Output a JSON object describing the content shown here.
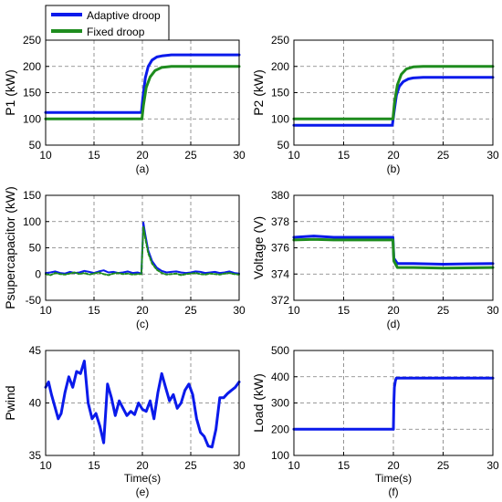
{
  "legend": {
    "entries": [
      {
        "label": "Adaptive droop",
        "color": "#0a1aeb"
      },
      {
        "label": "Fixed droop",
        "color": "#1e8c1e"
      }
    ]
  },
  "colors": {
    "adaptive": "#0a1aeb",
    "fixed": "#1e8c1e"
  },
  "chart_data": [
    {
      "type": "line",
      "panel": "(a)",
      "ylabel": "P1 (kW)",
      "xlabel": "",
      "xlim": [
        10,
        30
      ],
      "ylim": [
        50,
        250
      ],
      "xticks": [
        "10",
        "15",
        "20",
        "25",
        "30"
      ],
      "yticks": [
        "50",
        "100",
        "150",
        "200",
        "250"
      ],
      "series": [
        {
          "name": "Adaptive droop",
          "x": [
            10,
            19.9,
            20.05,
            20.3,
            20.6,
            21,
            21.5,
            22,
            23,
            30
          ],
          "y": [
            112,
            112,
            140,
            178,
            200,
            212,
            218,
            220,
            222,
            222
          ]
        },
        {
          "name": "Fixed droop",
          "x": [
            10,
            19.95,
            20.1,
            20.4,
            20.8,
            21.3,
            22,
            23,
            30
          ],
          "y": [
            100,
            100,
            125,
            160,
            180,
            192,
            198,
            200,
            200
          ]
        }
      ]
    },
    {
      "type": "line",
      "panel": "(b)",
      "ylabel": "P2 (kW)",
      "xlabel": "",
      "xlim": [
        10,
        30
      ],
      "ylim": [
        50,
        250
      ],
      "xticks": [
        "10",
        "15",
        "20",
        "25",
        "30"
      ],
      "yticks": [
        "50",
        "100",
        "150",
        "200",
        "250"
      ],
      "series": [
        {
          "name": "Adaptive droop",
          "x": [
            10,
            19.9,
            20.05,
            20.3,
            20.6,
            21,
            21.5,
            22,
            23,
            30
          ],
          "y": [
            88,
            88,
            110,
            145,
            162,
            171,
            176,
            178,
            179,
            179
          ]
        },
        {
          "name": "Fixed droop",
          "x": [
            10,
            19.95,
            20.1,
            20.4,
            20.8,
            21.3,
            22,
            23,
            30
          ],
          "y": [
            100,
            100,
            130,
            165,
            185,
            195,
            199,
            200,
            200
          ]
        }
      ]
    },
    {
      "type": "line",
      "panel": "(c)",
      "ylabel": "Psupercapacitor (kW)",
      "xlabel": "",
      "xlim": [
        10,
        30
      ],
      "ylim": [
        -50,
        150
      ],
      "xticks": [
        "10",
        "15",
        "20",
        "25",
        "30"
      ],
      "yticks": [
        "-50",
        "0",
        "50",
        "100",
        "150"
      ],
      "series": [
        {
          "name": "Adaptive droop",
          "x": [
            10,
            10.5,
            11,
            11.5,
            12,
            12.5,
            13,
            13.5,
            14,
            14.5,
            15,
            15.5,
            16,
            16.5,
            17,
            17.5,
            18,
            18.5,
            19,
            19.5,
            19.9,
            20.1,
            20.3,
            20.6,
            21,
            21.5,
            22,
            22.5,
            23,
            23.5,
            24,
            24.5,
            25,
            25.5,
            26,
            26.5,
            27,
            27.5,
            28,
            28.5,
            29,
            29.5,
            30
          ],
          "y": [
            2,
            3,
            5,
            2,
            1,
            4,
            2,
            3,
            6,
            4,
            2,
            5,
            7,
            3,
            4,
            2,
            3,
            5,
            2,
            3,
            1,
            98,
            75,
            45,
            25,
            12,
            6,
            3,
            4,
            5,
            3,
            2,
            3,
            5,
            4,
            2,
            3,
            4,
            2,
            3,
            5,
            2,
            1
          ]
        },
        {
          "name": "Fixed droop",
          "x": [
            10,
            10.5,
            11,
            11.5,
            12,
            12.5,
            13,
            13.5,
            14,
            14.5,
            15,
            15.5,
            16,
            16.5,
            17,
            17.5,
            18,
            18.5,
            19,
            19.5,
            19.9,
            20.1,
            20.3,
            20.6,
            21,
            21.5,
            22,
            22.5,
            23,
            23.5,
            24,
            24.5,
            25,
            25.5,
            26,
            26.5,
            27,
            27.5,
            28,
            28.5,
            29,
            29.5,
            30
          ],
          "y": [
            0,
            -2,
            2,
            0,
            -1,
            1,
            3,
            0,
            2,
            -1,
            1,
            3,
            0,
            -2,
            1,
            2,
            0,
            1,
            -1,
            0,
            0,
            90,
            68,
            40,
            20,
            8,
            2,
            -1,
            0,
            1,
            -2,
            0,
            1,
            2,
            0,
            -1,
            1,
            0,
            -1,
            1,
            2,
            0,
            -1
          ]
        }
      ]
    },
    {
      "type": "line",
      "panel": "(d)",
      "ylabel": "Voltage (V)",
      "xlabel": "",
      "xlim": [
        10,
        30
      ],
      "ylim": [
        372,
        380
      ],
      "xticks": [
        "10",
        "15",
        "20",
        "25",
        "30"
      ],
      "yticks": [
        "372",
        "374",
        "376",
        "378",
        "380"
      ],
      "series": [
        {
          "name": "Adaptive droop",
          "x": [
            10,
            12,
            14,
            16,
            18,
            19.95,
            20.05,
            20.4,
            22,
            25,
            30
          ],
          "y": [
            376.8,
            376.9,
            376.8,
            376.8,
            376.8,
            376.8,
            375.2,
            374.8,
            374.8,
            374.75,
            374.8
          ]
        },
        {
          "name": "Fixed droop",
          "x": [
            10,
            12,
            14,
            16,
            18,
            19.95,
            20.05,
            20.4,
            22,
            25,
            30
          ],
          "y": [
            376.6,
            376.65,
            376.6,
            376.6,
            376.6,
            376.6,
            375.0,
            374.5,
            374.5,
            374.45,
            374.5
          ]
        }
      ]
    },
    {
      "type": "line",
      "panel": "(e)",
      "ylabel": "Pwind",
      "xlabel": "Time(s)",
      "xlim": [
        10,
        30
      ],
      "ylim": [
        35,
        45
      ],
      "xticks": [
        "10",
        "15",
        "20",
        "25",
        "30"
      ],
      "yticks": [
        "35",
        "40",
        "45"
      ],
      "series": [
        {
          "name": "Pwind",
          "x": [
            10,
            10.3,
            10.6,
            11,
            11.3,
            11.6,
            12,
            12.4,
            12.8,
            13.2,
            13.6,
            14,
            14.4,
            14.8,
            15.2,
            15.6,
            16,
            16.4,
            16.8,
            17.2,
            17.6,
            18,
            18.4,
            18.8,
            19.2,
            19.6,
            20,
            20.4,
            20.8,
            21.2,
            21.6,
            22,
            22.4,
            22.8,
            23.2,
            23.6,
            24,
            24.4,
            24.8,
            25.2,
            25.6,
            26,
            26.4,
            26.8,
            27.2,
            27.6,
            28,
            28.4,
            28.8,
            29.2,
            29.6,
            30
          ],
          "y": [
            41.5,
            42,
            40.8,
            39.5,
            38.5,
            39,
            41,
            42.5,
            41.5,
            43,
            42.8,
            44,
            40,
            38.5,
            39,
            37.8,
            36.2,
            41.8,
            40.5,
            38.8,
            40.2,
            39.5,
            38.8,
            39.2,
            38.9,
            40,
            39.4,
            39.2,
            40.2,
            38.5,
            41,
            42.8,
            41.5,
            40.2,
            40.8,
            39.5,
            40,
            41.2,
            41.8,
            40.8,
            38.5,
            37.2,
            36.8,
            35.9,
            35.8,
            37.5,
            40.5,
            40.5,
            40.9,
            41.2,
            41.5,
            42
          ]
        }
      ]
    },
    {
      "type": "line",
      "panel": "(f)",
      "ylabel": "Load (kW)",
      "xlabel": "Time(s)",
      "xlim": [
        10,
        30
      ],
      "ylim": [
        100,
        500
      ],
      "xticks": [
        "10",
        "15",
        "20",
        "25",
        "30"
      ],
      "yticks": [
        "100",
        "200",
        "300",
        "400",
        "500"
      ],
      "series": [
        {
          "name": "Load",
          "x": [
            10,
            20,
            20.05,
            20.1,
            20.2,
            20.3,
            30
          ],
          "y": [
            200,
            200,
            300,
            360,
            385,
            395,
            395
          ]
        }
      ]
    }
  ]
}
